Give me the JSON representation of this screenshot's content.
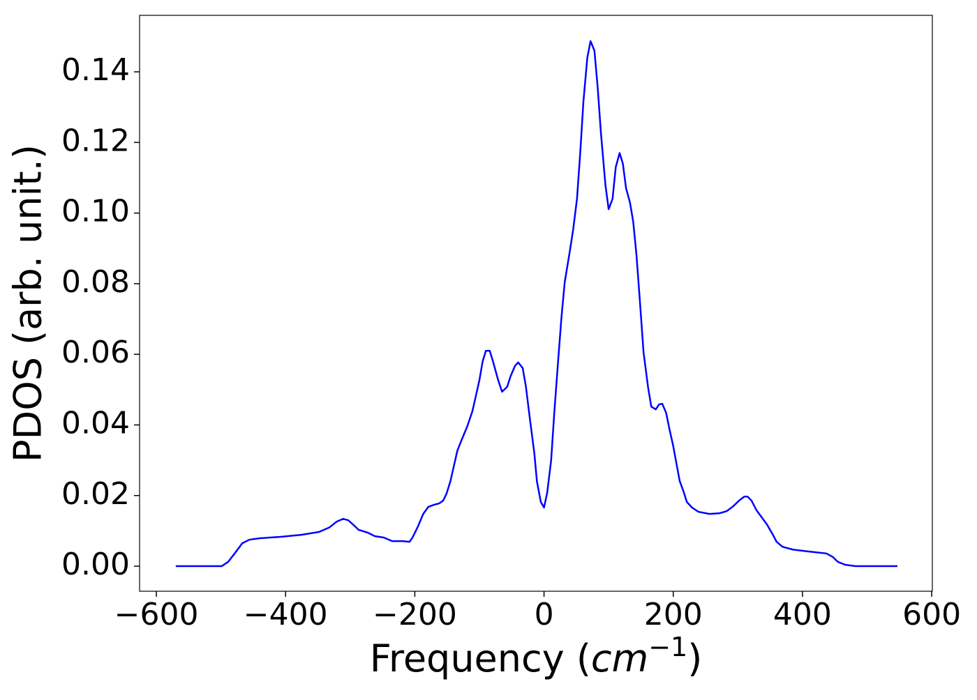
{
  "chart_data": {
    "type": "line",
    "xlabel": [
      "Frequency (",
      "cm",
      "−1",
      ")"
    ],
    "ylabel": "PDOS (arb. unit.)",
    "x": [
      -570,
      -499,
      -489,
      -478,
      -467,
      -456,
      -440,
      -408,
      -375,
      -348,
      -332,
      -321,
      -311,
      -303,
      -295,
      -287,
      -273,
      -262,
      -248,
      -235,
      -219,
      -208,
      -203,
      -195,
      -187,
      -179,
      -170,
      -162,
      -156,
      -151,
      -145,
      -140,
      -134,
      -127,
      -119,
      -111,
      -106,
      -100,
      -95,
      -90,
      -84,
      -79,
      -71,
      -65,
      -57,
      -52,
      -45,
      -40,
      -33,
      -28,
      -22,
      -15,
      -11,
      -5,
      0,
      5,
      11,
      16,
      22,
      27,
      32,
      40,
      45,
      51,
      56,
      61,
      67,
      72,
      78,
      83,
      88,
      95,
      100,
      106,
      111,
      117,
      122,
      127,
      133,
      138,
      143,
      149,
      154,
      161,
      166,
      173,
      178,
      183,
      189,
      194,
      200,
      205,
      210,
      216,
      221,
      229,
      239,
      256,
      272,
      283,
      293,
      302,
      310,
      315,
      321,
      329,
      337,
      345,
      353,
      360,
      369,
      385,
      412,
      437,
      447,
      455,
      466,
      482,
      547
    ],
    "series": [
      {
        "color": "#0000ff",
        "values": [
          0,
          0,
          0.0012,
          0.0038,
          0.0065,
          0.0075,
          0.0079,
          0.0083,
          0.0089,
          0.0097,
          0.011,
          0.0126,
          0.0134,
          0.013,
          0.0117,
          0.0103,
          0.0095,
          0.0085,
          0.0081,
          0.0071,
          0.0071,
          0.0069,
          0.0083,
          0.0113,
          0.0148,
          0.0168,
          0.0174,
          0.0178,
          0.0186,
          0.0205,
          0.024,
          0.028,
          0.0328,
          0.036,
          0.0395,
          0.0438,
          0.0478,
          0.0527,
          0.058,
          0.061,
          0.061,
          0.058,
          0.0527,
          0.0494,
          0.0508,
          0.0537,
          0.0567,
          0.0577,
          0.0561,
          0.0508,
          0.0419,
          0.032,
          0.024,
          0.0182,
          0.0166,
          0.0209,
          0.03,
          0.0438,
          0.0586,
          0.0705,
          0.0804,
          0.0893,
          0.0952,
          0.104,
          0.117,
          0.1317,
          0.144,
          0.1487,
          0.146,
          0.1357,
          0.1228,
          0.108,
          0.1011,
          0.104,
          0.113,
          0.117,
          0.114,
          0.107,
          0.103,
          0.0976,
          0.0883,
          0.0735,
          0.0606,
          0.0507,
          0.0452,
          0.0444,
          0.0458,
          0.046,
          0.0434,
          0.0389,
          0.034,
          0.029,
          0.0241,
          0.0211,
          0.0182,
          0.0166,
          0.0154,
          0.0148,
          0.015,
          0.0156,
          0.017,
          0.0186,
          0.0197,
          0.0197,
          0.0186,
          0.0158,
          0.0138,
          0.0118,
          0.0093,
          0.0069,
          0.0055,
          0.0047,
          0.0041,
          0.0036,
          0.0026,
          0.0012,
          0.0004,
          0,
          0
        ]
      }
    ],
    "xlim": [
      -626,
      601
    ],
    "ylim": [
      -0.0071,
      0.156
    ],
    "xticks": [
      {
        "value": -600,
        "label": "−600"
      },
      {
        "value": -400,
        "label": "−400"
      },
      {
        "value": -200,
        "label": "−200"
      },
      0,
      200,
      400,
      600
    ],
    "yticks": [
      {
        "value": 0,
        "label": "0.00"
      },
      0.02,
      0.04,
      0.06,
      0.08,
      {
        "value": 0.1,
        "label": "0.10"
      },
      0.12,
      0.14
    ]
  }
}
